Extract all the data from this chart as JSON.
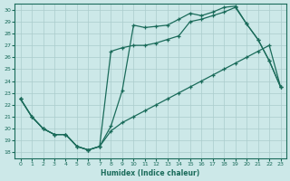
{
  "xlabel": "Humidex (Indice chaleur)",
  "bg_color": "#cce8e8",
  "grid_color": "#aacccc",
  "line_color": "#1a6b5a",
  "xlim": [
    -0.5,
    23.5
  ],
  "ylim": [
    17.5,
    30.5
  ],
  "xticks": [
    0,
    1,
    2,
    3,
    4,
    5,
    6,
    7,
    8,
    9,
    10,
    11,
    12,
    13,
    14,
    15,
    16,
    17,
    18,
    19,
    20,
    21,
    22,
    23
  ],
  "yticks": [
    18,
    19,
    20,
    21,
    22,
    23,
    24,
    25,
    26,
    27,
    28,
    29,
    30
  ],
  "curve1_x": [
    0,
    1,
    2,
    3,
    4,
    5,
    6,
    7,
    8,
    9,
    10,
    11,
    12,
    13,
    14,
    15,
    16,
    17,
    18,
    19,
    20,
    21,
    22,
    23
  ],
  "curve1_y": [
    22.5,
    21.0,
    20.0,
    19.5,
    19.5,
    18.5,
    18.2,
    18.5,
    20.2,
    23.2,
    28.7,
    28.5,
    28.6,
    28.7,
    29.2,
    29.7,
    29.5,
    29.8,
    30.2,
    30.3,
    28.8,
    27.5,
    25.7,
    23.5
  ],
  "curve2_x": [
    0,
    1,
    2,
    3,
    4,
    5,
    6,
    7,
    8,
    9,
    10,
    11,
    12,
    13,
    14,
    15,
    16,
    17,
    18,
    19,
    20,
    21,
    22,
    23
  ],
  "curve2_y": [
    22.5,
    21.0,
    20.0,
    19.5,
    19.5,
    18.5,
    18.2,
    18.5,
    26.5,
    26.8,
    27.0,
    27.0,
    27.2,
    27.5,
    27.8,
    29.0,
    29.2,
    29.5,
    29.8,
    30.2,
    28.8,
    27.5,
    25.7,
    23.5
  ],
  "curve3_x": [
    0,
    1,
    2,
    3,
    4,
    5,
    6,
    7,
    8,
    9,
    10,
    11,
    12,
    13,
    14,
    15,
    16,
    17,
    18,
    19,
    20,
    21,
    22,
    23
  ],
  "curve3_y": [
    22.5,
    21.0,
    20.0,
    19.5,
    19.5,
    18.5,
    18.2,
    18.5,
    19.8,
    20.5,
    21.0,
    21.5,
    22.0,
    22.5,
    23.0,
    23.5,
    24.0,
    24.5,
    25.0,
    25.5,
    26.0,
    26.5,
    27.0,
    23.5
  ]
}
